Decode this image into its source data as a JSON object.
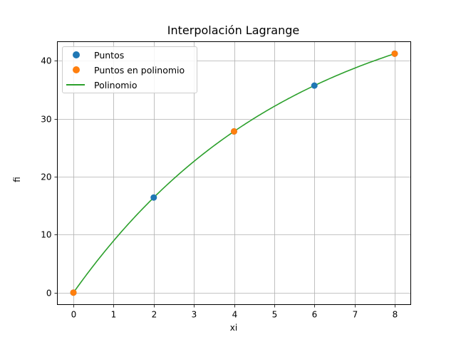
{
  "chart_data": {
    "type": "line",
    "title": "Interpolación Lagrange",
    "xlabel": "xi",
    "ylabel": "fi",
    "xlim": [
      -0.4,
      8.4
    ],
    "ylim": [
      -2.06,
      43.27
    ],
    "xticks": [
      "0",
      "1",
      "2",
      "3",
      "4",
      "5",
      "6",
      "7",
      "8"
    ],
    "yticks": [
      "0",
      "10",
      "20",
      "30",
      "40"
    ],
    "grid": true,
    "legend_position": "upper left",
    "series": [
      {
        "name": "Puntos",
        "type": "scatter",
        "color": "#1f77b4",
        "x": [
          0,
          2,
          4,
          6,
          8
        ],
        "y": [
          0,
          16.4,
          27.8,
          35.7,
          41.2
        ]
      },
      {
        "name": "Puntos en polinomio",
        "type": "scatter",
        "color": "#ff7f0e",
        "x": [
          0,
          4,
          8
        ],
        "y": [
          0,
          27.8,
          41.2
        ]
      },
      {
        "name": "Polinomio",
        "type": "line",
        "color": "#2ca02c",
        "x": [
          0,
          1,
          2,
          3,
          4,
          5,
          6,
          7,
          8
        ],
        "y": [
          0,
          8.3,
          15.7,
          22.1,
          27.8,
          32.4,
          36.2,
          39.1,
          41.2
        ]
      }
    ]
  },
  "legend": {
    "items": [
      {
        "label": "Puntos",
        "color": "#1f77b4",
        "kind": "dot"
      },
      {
        "label": "Puntos en polinomio",
        "color": "#ff7f0e",
        "kind": "dot"
      },
      {
        "label": "Polinomio",
        "color": "#2ca02c",
        "kind": "line"
      }
    ]
  }
}
